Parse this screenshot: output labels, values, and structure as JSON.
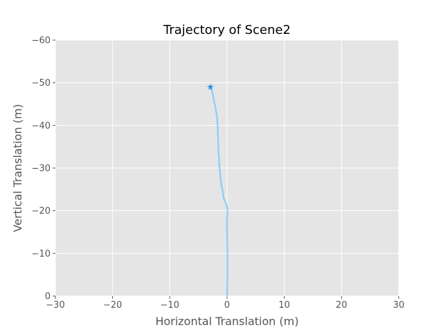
{
  "chart_data": {
    "type": "line",
    "title": "Trajectory of Scene2",
    "xlabel": "Horizontal Translation (m)",
    "ylabel": "Vertical Translation (m)",
    "xlim": [
      -30,
      30
    ],
    "ylim": [
      0,
      -60
    ],
    "y_inverted": true,
    "grid": true,
    "xticks": [
      -30,
      -20,
      -10,
      0,
      10,
      20,
      30
    ],
    "yticks": [
      0,
      -10,
      -20,
      -30,
      -40,
      -50,
      -60
    ],
    "xtick_labels": [
      "−30",
      "−20",
      "−10",
      "0",
      "10",
      "20",
      "30"
    ],
    "ytick_labels": [
      "0",
      "−10",
      "−20",
      "−30",
      "−40",
      "−50",
      "−60"
    ],
    "series": [
      {
        "color": "#87cefa",
        "x": [
          0.0,
          0.05,
          0.08,
          0.08,
          0.05,
          0.0,
          0.0,
          0.1,
          0.0,
          -0.3,
          -0.6,
          -0.7,
          -0.8,
          -1.0,
          -1.15,
          -1.3,
          -1.4,
          -1.5,
          -1.55,
          -1.6,
          -1.65,
          -1.75,
          -2.0,
          -2.3,
          -2.6,
          -2.9
        ],
        "y": [
          0,
          -3,
          -6,
          -9,
          -12,
          -15,
          -18,
          -19.5,
          -21,
          -22,
          -23,
          -24,
          -25,
          -26,
          -28,
          -30,
          -32,
          -34,
          -36,
          -38,
          -40,
          -42,
          -44,
          -46,
          -48,
          -49
        ]
      }
    ],
    "markers": [
      {
        "symbol": "star",
        "x": -2.9,
        "y": -49,
        "color": "#2f8fdc"
      }
    ],
    "background": "#e5e5e5",
    "grid_color": "#ffffff"
  }
}
